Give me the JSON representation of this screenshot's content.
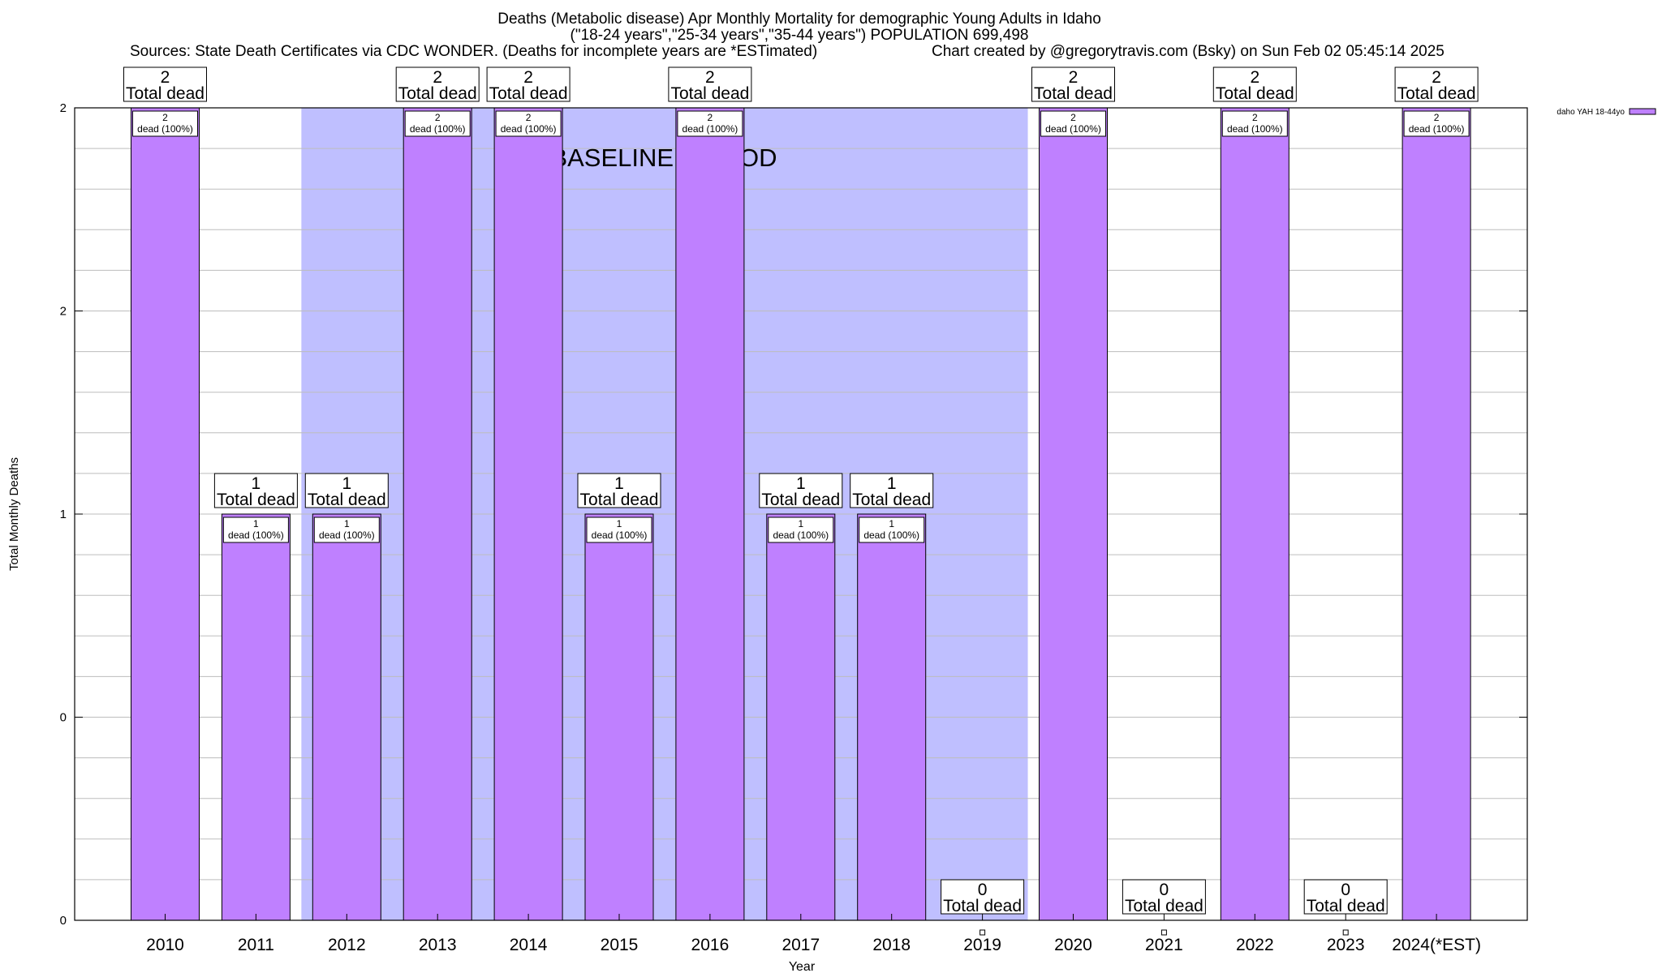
{
  "header": {
    "title_line1": "Deaths (Metabolic disease) Apr Monthly Mortality for demographic Young Adults in Idaho",
    "title_line2": "(\"18-24 years\",\"25-34 years\",\"35-44 years\") POPULATION 699,498",
    "sources": "Sources: State Death Certificates via CDC WONDER. (Deaths for incomplete years are *ESTimated)",
    "credit": "Chart created by @gregorytravis.com (Bsky) on Sun Feb 02 05:45:14 2025"
  },
  "chart_data": {
    "type": "bar",
    "xlabel": "Year",
    "ylabel": "Total Monthly Deaths",
    "ylim": [
      0,
      2
    ],
    "y_tick_labels": [
      "0",
      "0",
      "1",
      "2",
      "2"
    ],
    "y_tick_values": [
      0,
      0.5,
      1,
      1.5,
      2
    ],
    "grid": true,
    "legend_placement": "top-right",
    "categories": [
      "2010",
      "2011",
      "2012",
      "2013",
      "2014",
      "2015",
      "2016",
      "2017",
      "2018",
      "2019",
      "2020",
      "2021",
      "2022",
      "2023",
      "2024(*EST)"
    ],
    "series": [
      {
        "name": "daho YAH 18-44yo",
        "color": "#bf80ff",
        "values": [
          2,
          1,
          1,
          2,
          2,
          1,
          2,
          1,
          1,
          0,
          2,
          0,
          2,
          0,
          2
        ]
      }
    ],
    "total_labels": [
      "2",
      "1",
      "1",
      "2",
      "2",
      "1",
      "2",
      "1",
      "1",
      "0",
      "2",
      "0",
      "2",
      "0",
      "2"
    ],
    "total_suffix": "Total dead",
    "inner_labels": [
      "2",
      "1",
      "1",
      "2",
      "2",
      "1",
      "2",
      "1",
      "1",
      "",
      "2",
      "",
      "2",
      "",
      "2"
    ],
    "inner_suffix": "dead (100%)",
    "baseline": {
      "label": "BASELINE PERIOD",
      "from_category": "2012",
      "to_category": "2019",
      "color": "#bfbfff"
    }
  }
}
